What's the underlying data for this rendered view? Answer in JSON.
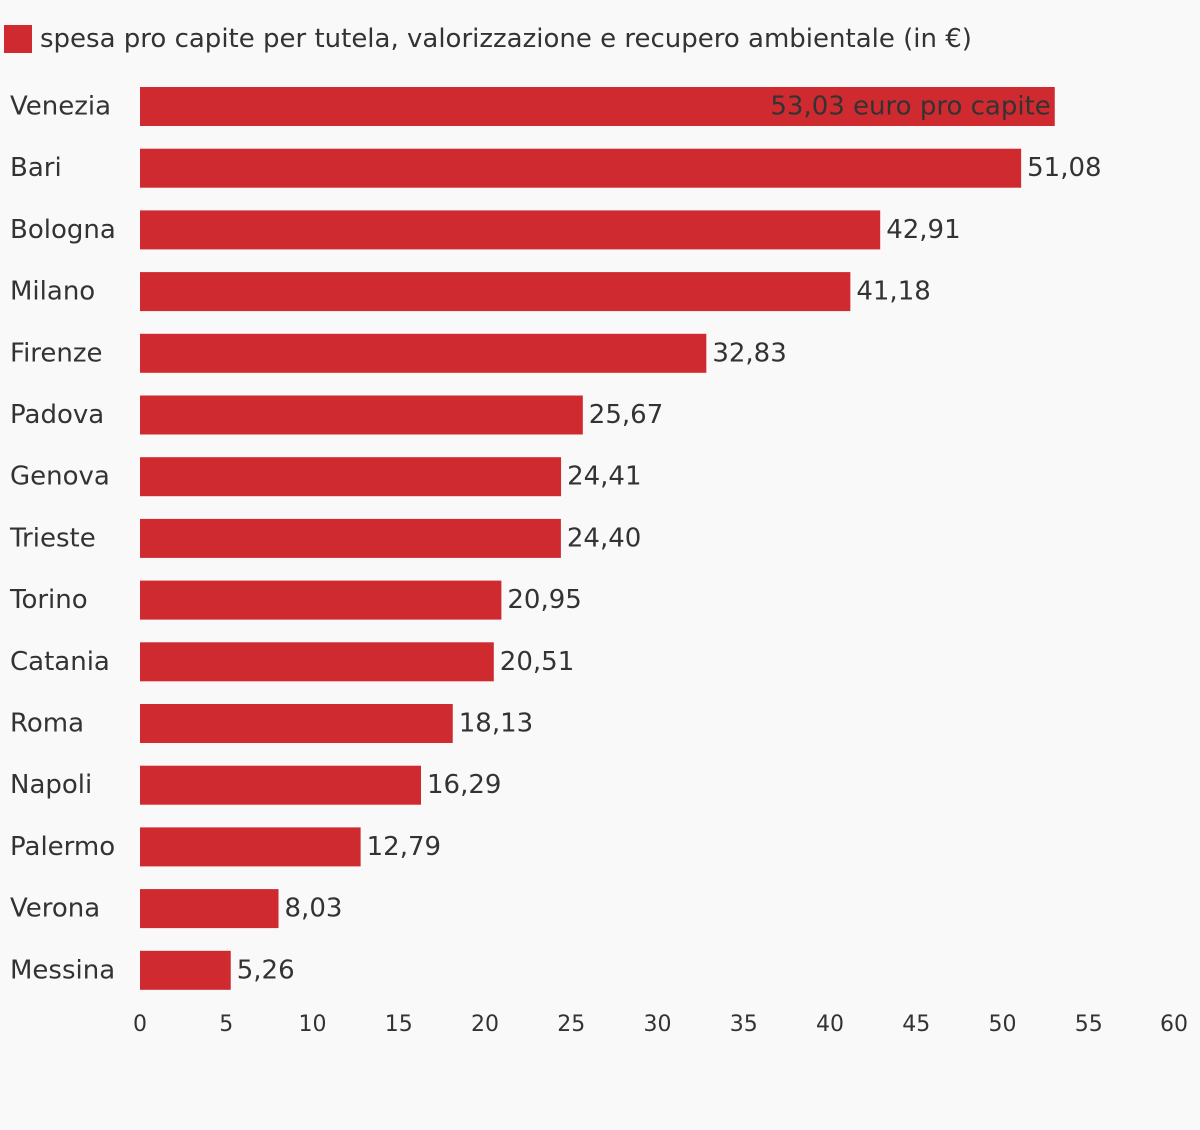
{
  "chart_data": {
    "type": "bar",
    "orientation": "horizontal",
    "categories": [
      "Venezia",
      "Bari",
      "Bologna",
      "Milano",
      "Firenze",
      "Padova",
      "Genova",
      "Trieste",
      "Torino",
      "Catania",
      "Roma",
      "Napoli",
      "Palermo",
      "Verona",
      "Messina"
    ],
    "series": [
      {
        "name": "spesa pro capite per tutela, valorizzazione e recupero ambientale (in €)",
        "values": [
          53.03,
          51.08,
          42.91,
          41.18,
          32.83,
          25.67,
          24.41,
          24.4,
          20.95,
          20.51,
          18.13,
          16.29,
          12.79,
          8.03,
          5.26
        ],
        "labels": [
          "53,03 euro pro capite",
          "51,08",
          "42,91",
          "41,18",
          "32,83",
          "25,67",
          "24,41",
          "24,40",
          "20,95",
          "20,51",
          "18,13",
          "16,29",
          "12,79",
          "8,03",
          "5,26"
        ],
        "color": "#cf2a30"
      }
    ],
    "xlim": [
      0,
      60
    ],
    "xticks": [
      0,
      5,
      10,
      15,
      20,
      25,
      30,
      35,
      40,
      45,
      50,
      55,
      60
    ],
    "grid": false,
    "legend_position": "top-left"
  },
  "colors": {
    "bar": "#cf2a30",
    "text": "#333333",
    "background": "#f9f9f9"
  }
}
